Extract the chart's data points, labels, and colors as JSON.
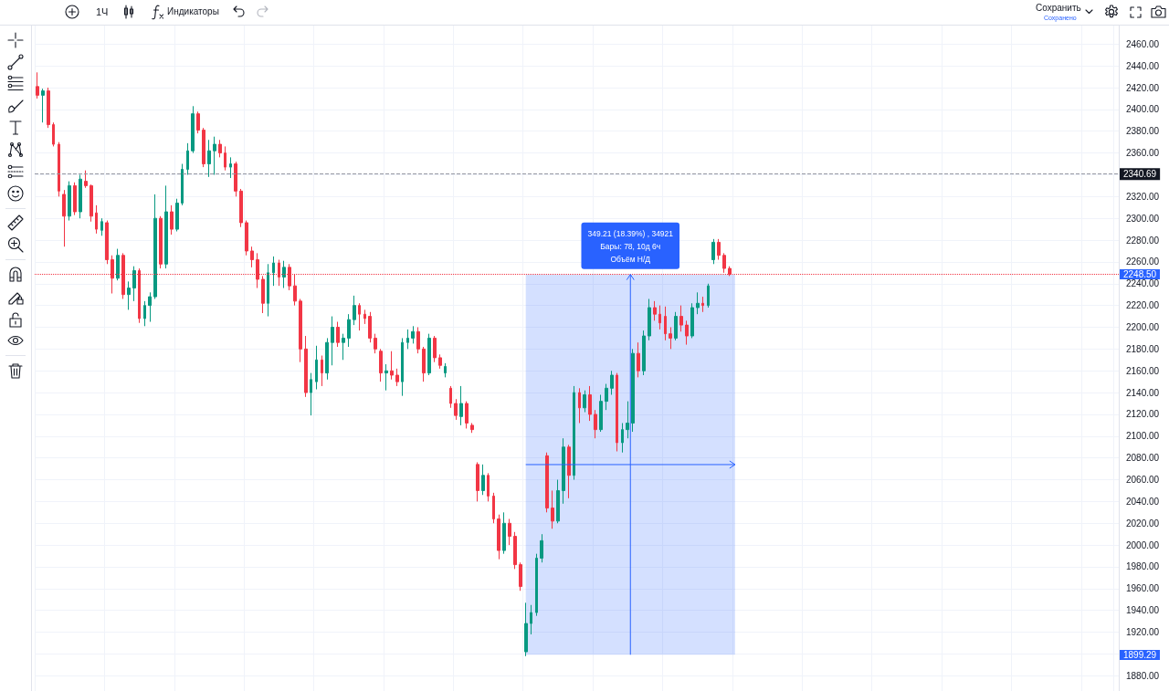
{
  "chart_data": {
    "type": "candlestick",
    "categories": [
      null,
      null,
      null,
      null,
      null,
      null,
      null,
      null,
      null,
      null,
      null,
      null,
      null,
      null,
      null,
      null,
      null,
      null,
      null,
      null,
      null,
      null,
      null,
      null,
      null,
      null,
      null,
      null,
      null,
      null,
      null,
      null,
      null,
      null,
      null,
      null,
      null,
      null,
      null,
      null,
      null,
      null,
      null,
      null,
      null,
      null,
      null,
      null,
      null,
      null,
      null,
      null,
      null,
      null,
      null,
      null,
      null,
      null,
      null,
      null,
      null,
      null,
      null,
      null,
      null,
      null,
      null,
      null,
      null,
      null,
      null,
      null,
      null,
      null,
      null,
      null,
      null,
      null,
      null,
      null,
      null,
      null,
      null,
      null,
      null,
      null,
      null,
      null,
      null,
      null,
      null,
      null,
      null,
      null,
      null,
      null,
      null,
      null,
      null,
      null,
      null,
      null,
      null,
      null,
      null,
      null,
      null,
      null,
      null,
      null,
      null,
      null,
      null,
      null,
      null,
      null,
      null,
      null,
      null,
      null,
      null,
      null,
      null,
      null,
      null,
      null,
      null,
      null,
      null,
      null,
      null,
      null,
      null,
      null,
      null,
      null,
      null,
      null,
      null,
      null,
      null,
      null,
      null,
      null,
      null,
      null,
      null,
      null,
      null,
      null,
      null,
      null,
      null,
      null,
      null,
      null,
      null,
      null,
      null,
      null,
      null,
      null,
      null,
      null,
      null,
      null,
      null,
      null,
      null,
      null,
      null,
      null,
      null,
      null,
      null,
      null,
      null,
      null,
      null,
      null,
      null,
      null,
      null,
      null,
      null,
      null,
      null,
      null,
      null,
      null,
      null,
      null,
      null,
      null,
      null,
      null,
      null,
      null,
      null,
      null,
      null,
      null
    ],
    "ohlc": [
      [
        2421,
        2434,
        2410,
        2413
      ],
      [
        2413,
        2419,
        2388,
        2417
      ],
      [
        2417,
        2420,
        2383,
        2386
      ],
      [
        2386,
        2388,
        2366,
        2368
      ],
      [
        2368,
        2370,
        2320,
        2325
      ],
      [
        2322,
        2326,
        2274,
        2302
      ],
      [
        2302,
        2334,
        2298,
        2330
      ],
      [
        2330,
        2333,
        2303,
        2306
      ],
      [
        2306,
        2340,
        2300,
        2336
      ],
      [
        2334,
        2344,
        2328,
        2330
      ],
      [
        2330,
        2331,
        2297,
        2302
      ],
      [
        2305,
        2312,
        2286,
        2290
      ],
      [
        2289,
        2300,
        2284,
        2297
      ],
      [
        2296,
        2298,
        2258,
        2262
      ],
      [
        2262,
        2266,
        2231,
        2245
      ],
      [
        2245,
        2272,
        2243,
        2266
      ],
      [
        2266,
        2268,
        2226,
        2230
      ],
      [
        2230,
        2242,
        2216,
        2236
      ],
      [
        2236,
        2256,
        2224,
        2252
      ],
      [
        2252,
        2254,
        2204,
        2208
      ],
      [
        2208,
        2224,
        2201,
        2220
      ],
      [
        2220,
        2232,
        2205,
        2228
      ],
      [
        2228,
        2322,
        2226,
        2300
      ],
      [
        2300,
        2302,
        2254,
        2258
      ],
      [
        2258,
        2330,
        2254,
        2306
      ],
      [
        2306,
        2312,
        2285,
        2290
      ],
      [
        2290,
        2318,
        2288,
        2314
      ],
      [
        2314,
        2350,
        2312,
        2345
      ],
      [
        2345,
        2369,
        2340,
        2362
      ],
      [
        2362,
        2403,
        2360,
        2396
      ],
      [
        2396,
        2398,
        2378,
        2381
      ],
      [
        2381,
        2383,
        2347,
        2350
      ],
      [
        2350,
        2372,
        2338,
        2362
      ],
      [
        2362,
        2375,
        2340,
        2368
      ],
      [
        2368,
        2372,
        2356,
        2360
      ],
      [
        2360,
        2366,
        2344,
        2347
      ],
      [
        2347,
        2356,
        2337,
        2350
      ],
      [
        2350,
        2352,
        2320,
        2325
      ],
      [
        2325,
        2327,
        2292,
        2296
      ],
      [
        2296,
        2298,
        2266,
        2270
      ],
      [
        2270,
        2274,
        2255,
        2262
      ],
      [
        2262,
        2268,
        2236,
        2244
      ],
      [
        2244,
        2247,
        2213,
        2222
      ],
      [
        2222,
        2258,
        2210,
        2250
      ],
      [
        2250,
        2265,
        2238,
        2259
      ],
      [
        2259,
        2262,
        2238,
        2246
      ],
      [
        2246,
        2261,
        2236,
        2255
      ],
      [
        2255,
        2258,
        2234,
        2238
      ],
      [
        2238,
        2249,
        2220,
        2224
      ],
      [
        2224,
        2226,
        2168,
        2180
      ],
      [
        2180,
        2192,
        2136,
        2140
      ],
      [
        2140,
        2158,
        2119,
        2152
      ],
      [
        2150,
        2183,
        2143,
        2170
      ],
      [
        2170,
        2174,
        2146,
        2158
      ],
      [
        2158,
        2190,
        2152,
        2186
      ],
      [
        2186,
        2210,
        2165,
        2200
      ],
      [
        2200,
        2205,
        2182,
        2186
      ],
      [
        2186,
        2194,
        2170,
        2190
      ],
      [
        2190,
        2212,
        2182,
        2207
      ],
      [
        2207,
        2229,
        2202,
        2220
      ],
      [
        2220,
        2222,
        2197,
        2212
      ],
      [
        2212,
        2216,
        2203,
        2208
      ],
      [
        2210,
        2214,
        2186,
        2190
      ],
      [
        2190,
        2194,
        2176,
        2180
      ],
      [
        2178,
        2180,
        2150,
        2158
      ],
      [
        2158,
        2166,
        2142,
        2160
      ],
      [
        2160,
        2178,
        2152,
        2156
      ],
      [
        2156,
        2162,
        2146,
        2150
      ],
      [
        2150,
        2190,
        2137,
        2186
      ],
      [
        2186,
        2198,
        2180,
        2190
      ],
      [
        2190,
        2201,
        2185,
        2196
      ],
      [
        2196,
        2200,
        2176,
        2180
      ],
      [
        2180,
        2182,
        2150,
        2158
      ],
      [
        2158,
        2194,
        2156,
        2190
      ],
      [
        2190,
        2192,
        2168,
        2172
      ],
      [
        2172,
        2175,
        2162,
        2165
      ],
      [
        2158,
        2167,
        2154,
        2164
      ],
      [
        2144,
        2146,
        2126,
        2130
      ],
      [
        2130,
        2134,
        2115,
        2119
      ],
      [
        2118,
        2146,
        2110,
        2130
      ],
      [
        2130,
        2132,
        2107,
        2112
      ],
      [
        2110,
        2112,
        2103,
        2106
      ],
      [
        2074,
        2076,
        2040,
        2050
      ],
      [
        2050,
        2074,
        2046,
        2064
      ],
      [
        2064,
        2066,
        2040,
        2045
      ],
      [
        2045,
        2048,
        2020,
        2024
      ],
      [
        2024,
        2028,
        1987,
        1995
      ],
      [
        1995,
        2030,
        1992,
        2020
      ],
      [
        2020,
        2024,
        2000,
        2008
      ],
      [
        2008,
        2012,
        1978,
        1982
      ],
      [
        1982,
        1984,
        1958,
        1962
      ],
      [
        1902,
        1947,
        1898,
        1928
      ],
      [
        1928,
        1945,
        1918,
        1938
      ],
      [
        1938,
        1992,
        1935,
        1988
      ],
      [
        1988,
        2010,
        1984,
        2004
      ],
      [
        2082,
        2085,
        2030,
        2034
      ],
      [
        2034,
        2050,
        2015,
        2022
      ],
      [
        2022,
        2060,
        2020,
        2050
      ],
      [
        2050,
        2098,
        2038,
        2090
      ],
      [
        2090,
        2092,
        2043,
        2064
      ],
      [
        2064,
        2146,
        2060,
        2140
      ],
      [
        2140,
        2144,
        2112,
        2126
      ],
      [
        2126,
        2142,
        2122,
        2138
      ],
      [
        2138,
        2146,
        2114,
        2120
      ],
      [
        2120,
        2124,
        2098,
        2106
      ],
      [
        2106,
        2138,
        2104,
        2132
      ],
      [
        2132,
        2148,
        2124,
        2144
      ],
      [
        2144,
        2160,
        2138,
        2156
      ],
      [
        2156,
        2158,
        2086,
        2094
      ],
      [
        2094,
        2112,
        2085,
        2106
      ],
      [
        2106,
        2132,
        2098,
        2112
      ],
      [
        2112,
        2180,
        2104,
        2176
      ],
      [
        2176,
        2186,
        2154,
        2160
      ],
      [
        2160,
        2197,
        2156,
        2192
      ],
      [
        2192,
        2226,
        2188,
        2218
      ],
      [
        2218,
        2224,
        2206,
        2212
      ],
      [
        2212,
        2220,
        2198,
        2204
      ],
      [
        2210,
        2219,
        2188,
        2194
      ],
      [
        2194,
        2200,
        2180,
        2190
      ],
      [
        2190,
        2214,
        2188,
        2210
      ],
      [
        2210,
        2220,
        2196,
        2202
      ],
      [
        2202,
        2206,
        2184,
        2192
      ],
      [
        2192,
        2222,
        2190,
        2218
      ],
      [
        2218,
        2232,
        2212,
        2222
      ],
      [
        2222,
        2228,
        2214,
        2220
      ],
      [
        2220,
        2240,
        2218,
        2238
      ],
      [
        2262,
        2281,
        2258,
        2278
      ],
      [
        2278,
        2281,
        2262,
        2266
      ],
      [
        2266,
        2268,
        2250,
        2254
      ],
      [
        2254,
        2256,
        2247,
        2248.5
      ],
      null,
      null,
      null,
      null,
      null,
      null,
      null,
      null,
      null,
      null,
      null,
      null,
      null,
      null,
      null,
      null,
      null,
      null,
      null,
      null,
      null,
      null,
      null,
      null,
      null,
      null,
      null,
      null,
      null,
      null,
      null,
      null,
      null,
      null,
      null,
      null,
      null,
      null,
      null,
      null,
      null,
      null,
      null,
      null,
      null,
      null,
      null,
      null,
      null,
      null,
      null,
      null,
      null,
      null,
      null,
      null,
      null,
      null,
      null,
      null,
      null,
      null,
      null,
      null,
      null,
      null,
      null,
      null,
      null,
      null,
      null,
      null
    ],
    "colors": [
      "#f23645",
      "#089981",
      "#f23645",
      "#f23645",
      "#f23645",
      "#f23645",
      "#089981",
      "#f23645",
      "#089981",
      "#f23645",
      "#f23645",
      "#f23645",
      "#089981",
      "#f23645",
      "#f23645",
      "#089981",
      "#f23645",
      "#089981",
      "#089981",
      "#f23645",
      "#089981",
      "#089981",
      "#089981",
      "#f23645",
      "#089981",
      "#f23645",
      "#089981",
      "#089981",
      "#089981",
      "#089981",
      "#f23645",
      "#f23645",
      "#089981",
      "#089981",
      "#f23645",
      "#f23645",
      "#089981",
      "#f23645",
      "#f23645",
      "#f23645",
      "#f23645",
      "#f23645",
      "#f23645",
      "#089981",
      "#089981",
      "#f23645",
      "#089981",
      "#f23645",
      "#f23645",
      "#f23645",
      "#f23645",
      "#089981",
      "#089981",
      "#f23645",
      "#089981",
      "#089981",
      "#f23645",
      "#089981",
      "#089981",
      "#089981",
      "#f23645",
      "#f23645",
      "#f23645",
      "#f23645",
      "#f23645",
      "#089981",
      "#f23645",
      "#f23645",
      "#089981",
      "#089981",
      "#089981",
      "#f23645",
      "#f23645",
      "#089981",
      "#f23645",
      "#f23645",
      "#089981",
      "#f23645",
      "#f23645",
      "#089981",
      "#f23645",
      "#f23645",
      "#f23645",
      "#089981",
      "#f23645",
      "#f23645",
      "#f23645",
      "#089981",
      "#f23645",
      "#f23645",
      "#f23645",
      "#089981",
      "#089981",
      "#089981",
      "#089981",
      "#f23645",
      "#f23645",
      "#089981",
      "#089981",
      "#f23645",
      "#089981",
      "#f23645",
      "#089981",
      "#f23645",
      "#f23645",
      "#089981",
      "#089981",
      "#089981",
      "#f23645",
      "#089981",
      "#089981",
      "#089981",
      "#f23645",
      "#089981",
      "#089981",
      "#f23645",
      "#f23645",
      "#f23645",
      "#f23645",
      "#089981",
      "#f23645",
      "#f23645",
      "#089981",
      "#089981",
      "#f23645",
      "#089981",
      "#089981",
      "#f23645",
      "#f23645",
      "#f23645",
      null,
      null,
      null,
      null,
      null,
      null,
      null,
      null,
      null,
      null,
      null,
      null,
      null,
      null,
      null,
      null,
      null,
      null,
      null,
      null,
      null,
      null,
      null,
      null,
      null,
      null,
      null,
      null,
      null,
      null,
      null,
      null,
      null,
      null,
      null,
      null,
      null,
      null,
      null,
      null,
      null,
      null,
      null,
      null,
      null,
      null,
      null,
      null,
      null,
      null,
      null,
      null,
      null,
      null,
      null,
      null,
      null,
      null,
      null,
      null,
      null,
      null,
      null,
      null,
      null,
      null,
      null,
      null,
      null,
      null,
      null,
      null
    ],
    "ylim": [
      1866,
      2477
    ],
    "yticks": [
      {
        "value": 1880,
        "label": "1880.00"
      },
      {
        "value": 1900,
        "label": null
      },
      {
        "value": 1920,
        "label": "1920.00"
      },
      {
        "value": 1940,
        "label": "1940.00"
      },
      {
        "value": 1960,
        "label": "1960.00"
      },
      {
        "value": 1980,
        "label": "1980.00"
      },
      {
        "value": 2000,
        "label": "2000.00"
      },
      {
        "value": 2020,
        "label": "2020.00"
      },
      {
        "value": 2040,
        "label": "2040.00"
      },
      {
        "value": 2060,
        "label": "2060.00"
      },
      {
        "value": 2080,
        "label": "2080.00"
      },
      {
        "value": 2100,
        "label": "2100.00"
      },
      {
        "value": 2120,
        "label": "2120.00"
      },
      {
        "value": 2140,
        "label": "2140.00"
      },
      {
        "value": 2160,
        "label": "2160.00"
      },
      {
        "value": 2180,
        "label": "2180.00"
      },
      {
        "value": 2200,
        "label": "2200.00"
      },
      {
        "value": 2220,
        "label": "2220.00"
      },
      {
        "value": 2240,
        "label": "2240.00"
      },
      {
        "value": 2260,
        "label": "2260.00"
      },
      {
        "value": 2280,
        "label": "2280.00"
      },
      {
        "value": 2300,
        "label": "2300.00"
      },
      {
        "value": 2320,
        "label": "2320.00"
      },
      {
        "value": 2340,
        "label": null
      },
      {
        "value": 2360,
        "label": "2360.00"
      },
      {
        "value": 2380,
        "label": "2380.00"
      },
      {
        "value": 2400,
        "label": "2400.00"
      },
      {
        "value": 2420,
        "label": "2420.00"
      },
      {
        "value": 2440,
        "label": "2440.00"
      },
      {
        "value": 2460,
        "label": "2460.00"
      }
    ],
    "grid": true,
    "tick_labels": "y",
    "ref_lines": [
      {
        "axis": "y",
        "value": 2340.69,
        "label": "2340.69",
        "color": "#9598a1",
        "line_style": "dashed"
      },
      {
        "axis": "y",
        "value": 2248.5,
        "color": "#f23645",
        "line_style": "dotted"
      }
    ],
    "bands": [
      {
        "axis": "y",
        "from": 1899.29,
        "to": 2248.5,
        "label": "349.21 (18.39%) , 34921\nБары: 78, 10д 6ч\nОбъём Н/Д",
        "color": "#2962ff"
      }
    ],
    "annotations": [
      "1Ч",
      "Индикаторы",
      "Сохранить",
      "Сохранено",
      "2248.50",
      "1899.29"
    ]
  }
}
